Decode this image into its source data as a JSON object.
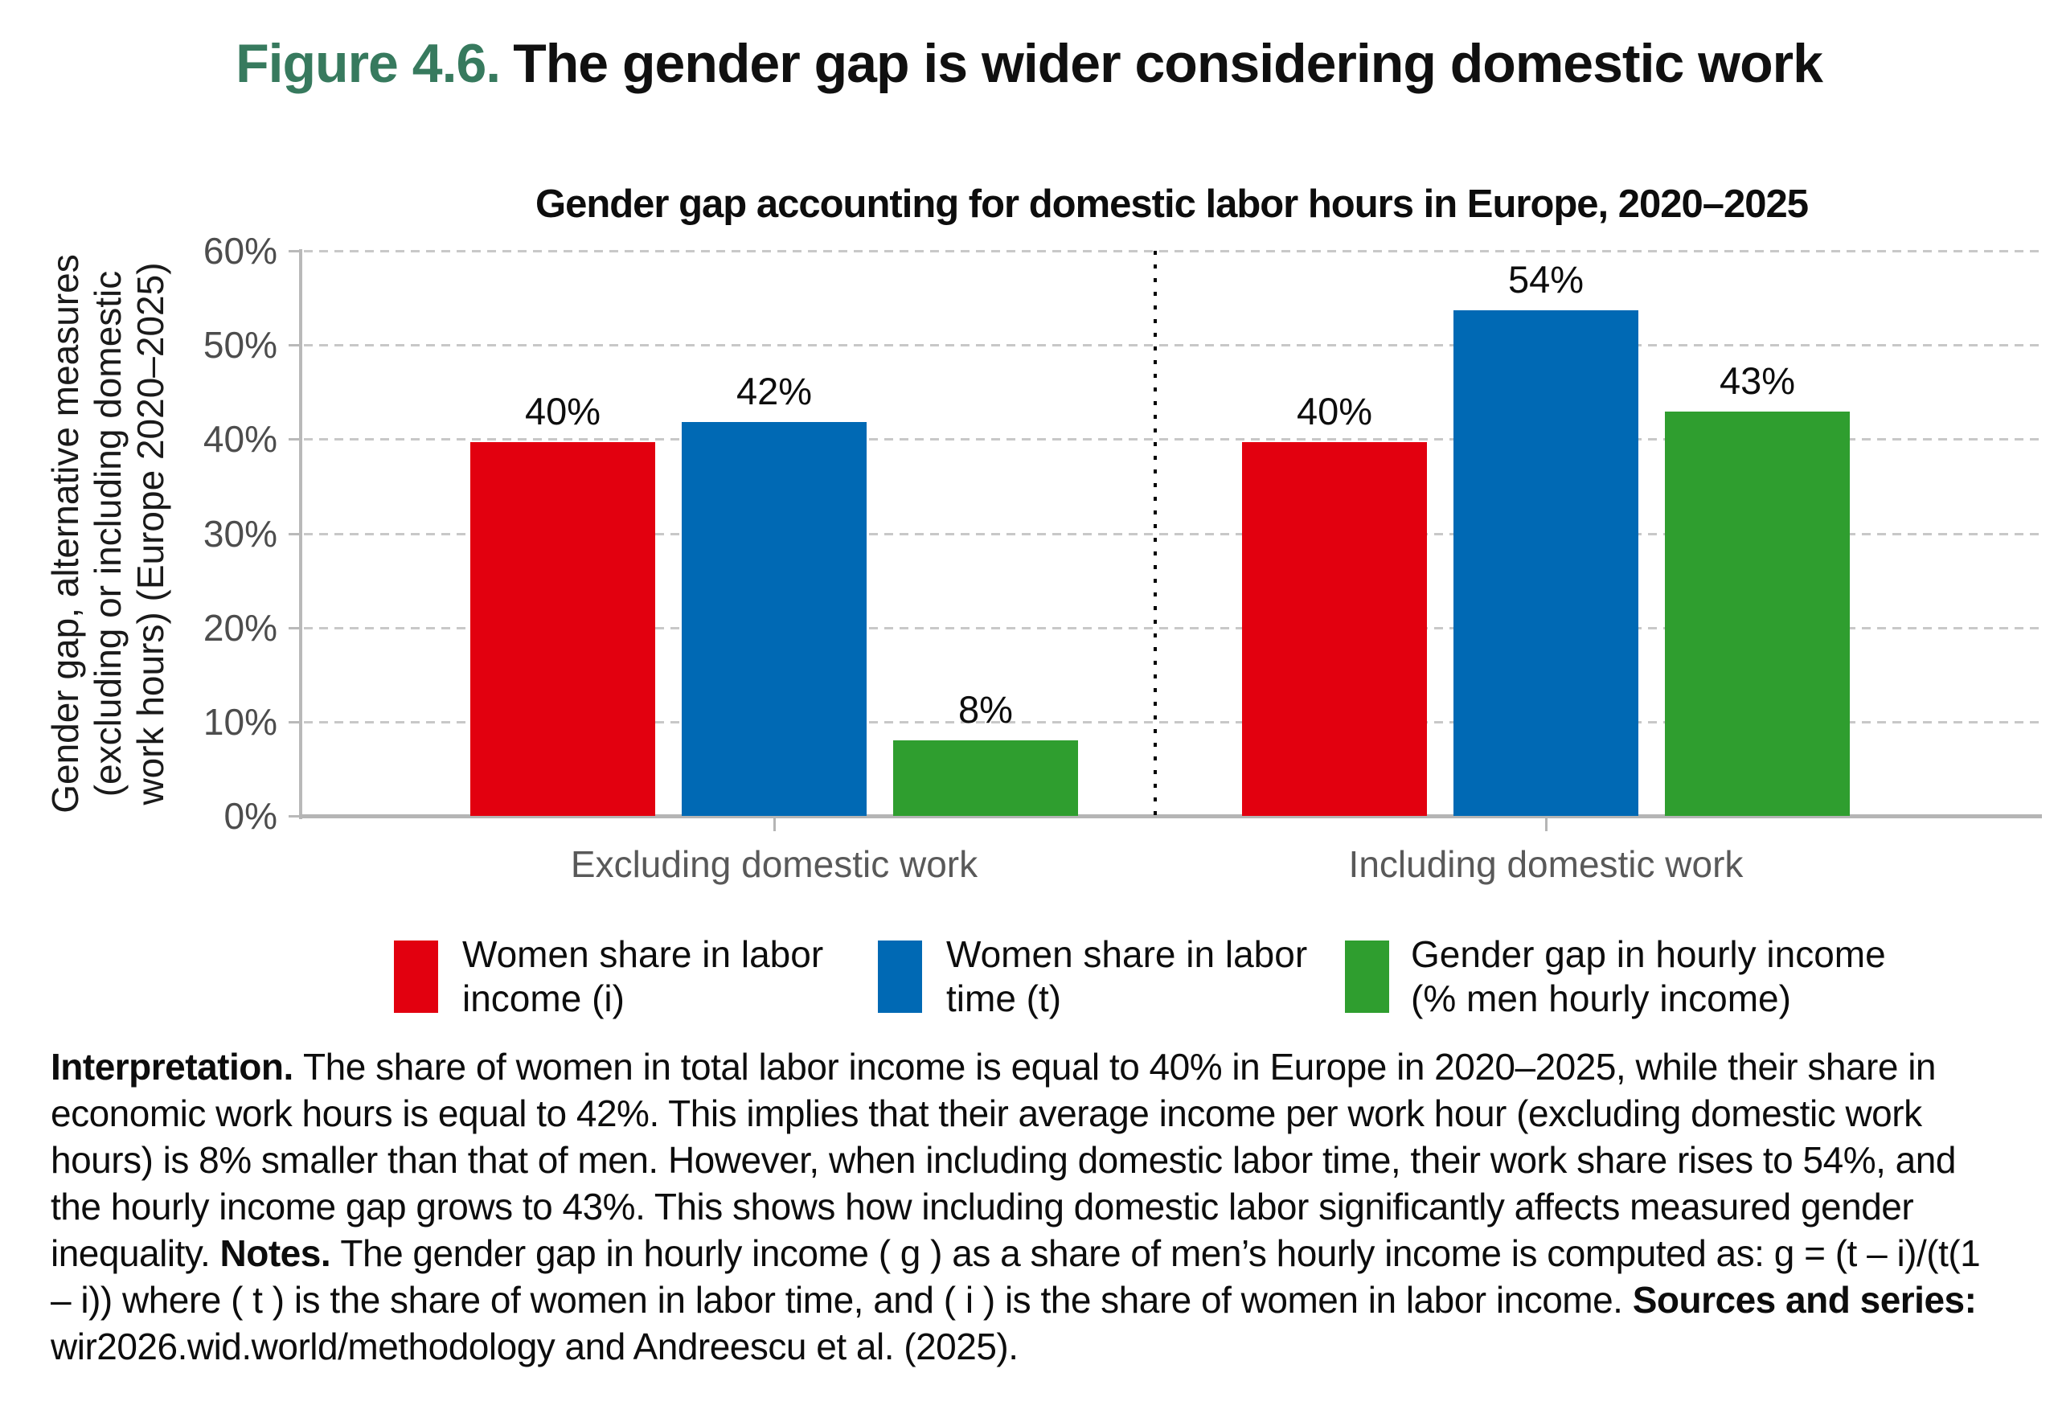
{
  "figure_title": {
    "prefix": "Figure 4.6.",
    "text": "The gender gap is wider considering domestic work"
  },
  "chart_data": {
    "type": "bar",
    "title": "Gender gap accounting for domestic labor hours in Europe, 2020–2025",
    "ylabel_lines": [
      "Gender gap, alternative measures",
      "(excluding or including domestic",
      "work hours)  (Europe 2020–2025)"
    ],
    "ylim": [
      0,
      60
    ],
    "ytick_step": 10,
    "ytick_labels": [
      "0%",
      "10%",
      "20%",
      "30%",
      "40%",
      "50%",
      "60%"
    ],
    "grid": "horizontal dashed gridlines at each 10%",
    "categories": [
      "Excluding domestic work",
      "Including domestic work"
    ],
    "series": [
      {
        "name": "Women share in labor income (i)",
        "name_lines": [
          "Women share in labor",
          "income (i)"
        ],
        "color": "#e2000f",
        "values": [
          40,
          40
        ],
        "labels": [
          "40%",
          "40%"
        ],
        "drawn": [
          39.7,
          39.7
        ]
      },
      {
        "name": "Women share in labor time (t)",
        "name_lines": [
          "Women share in labor",
          "time (t)"
        ],
        "color": "#0069b4",
        "values": [
          42,
          54
        ],
        "labels": [
          "42%",
          "54%"
        ],
        "drawn": [
          41.8,
          53.7
        ]
      },
      {
        "name": "Gender gap in hourly income (% men hourly income)",
        "name_lines": [
          "Gender gap in hourly income",
          "(% men hourly income)"
        ],
        "color": "#2f9e2f",
        "values": [
          8,
          43
        ],
        "labels": [
          "8%",
          "43%"
        ],
        "drawn": [
          8.0,
          42.9
        ]
      }
    ],
    "separator": "vertical dotted black line between the two category groups",
    "legend_position": "bottom"
  },
  "interpretation": {
    "segments": [
      {
        "bold": true,
        "text": "Interpretation. "
      },
      {
        "bold": false,
        "text": "The share of women in total labor income is equal to 40% in Europe in 2020–2025, while their share in economic work hours is equal to 42%. This implies that their average income per work hour (excluding domestic work hours) is 8% smaller than that of men. However, when including domestic labor time, their work share rises to 54%, and the hourly income gap grows to 43%. This shows how including domestic labor significantly affects measured gender inequality. "
      },
      {
        "bold": true,
        "text": "Notes. "
      },
      {
        "bold": false,
        "text": "The gender gap in hourly income ( g ) as a share of men’s hourly income is computed as: g = (t – i)/(t(1 – i)) where ( t ) is the share of women in labor time, and ( i ) is the share of women in labor income. "
      },
      {
        "bold": true,
        "text": "Sources and series: "
      },
      {
        "bold": false,
        "text": "wir2026.wid.world/methodology and Andreescu et al. (2025)."
      }
    ]
  }
}
